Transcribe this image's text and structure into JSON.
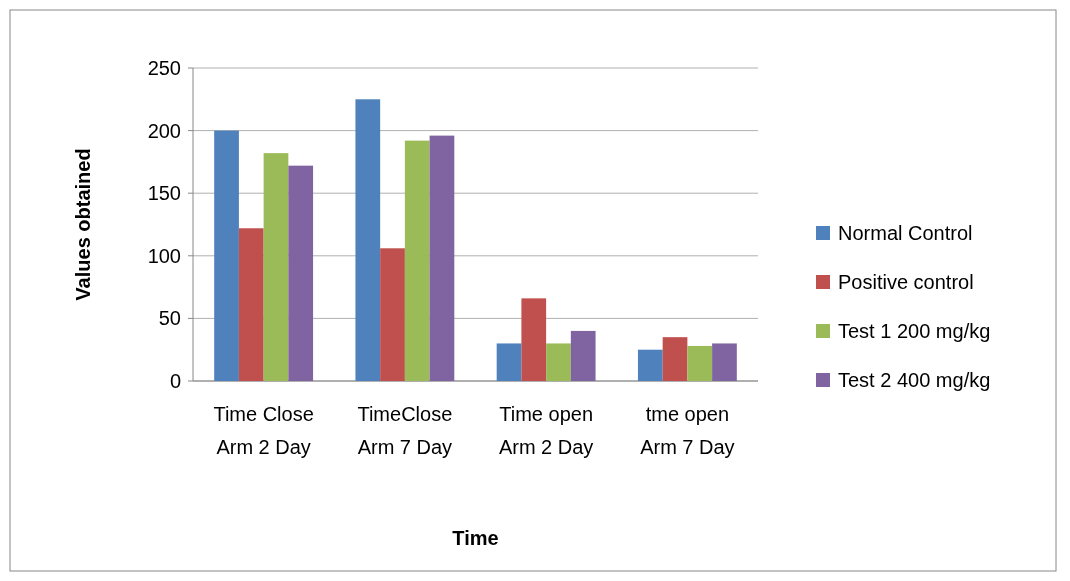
{
  "chart_data": {
    "type": "bar",
    "xlabel": "Time",
    "ylabel": "Values obtained",
    "categories": [
      "Time Close Arm 2 Day",
      "TimeClose Arm 7 Day",
      "Time open Arm 2 Day",
      "tme open Arm 7 Day"
    ],
    "series": [
      {
        "name": "Normal Control",
        "color": "#4f81bd",
        "values": [
          200,
          225,
          30,
          25
        ]
      },
      {
        "name": "Positive control",
        "color": "#c0504d",
        "values": [
          122,
          106,
          66,
          35
        ]
      },
      {
        "name": "Test 1 200 mg/kg",
        "color": "#9bbb59",
        "values": [
          182,
          192,
          30,
          28
        ]
      },
      {
        "name": "Test 2 400 mg/kg",
        "color": "#8064a2",
        "values": [
          172,
          196,
          40,
          30
        ]
      }
    ],
    "ylim": [
      0,
      250
    ],
    "yticks": [
      0,
      50,
      100,
      150,
      200,
      250
    ],
    "grid": "y",
    "legend": "right"
  }
}
